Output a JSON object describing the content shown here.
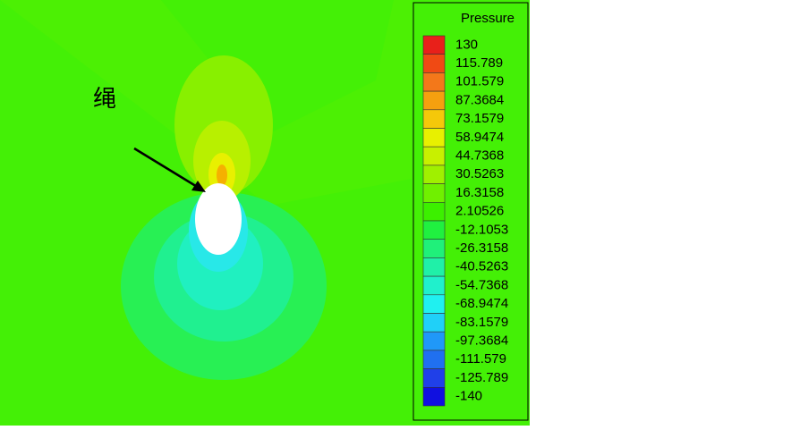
{
  "annotation": "绳",
  "legend": {
    "title": "Pressure",
    "levels": [
      {
        "label": 130,
        "color": "#e8201a"
      },
      {
        "label": 115.789,
        "color": "#f04a14"
      },
      {
        "label": 101.579,
        "color": "#f3781a"
      },
      {
        "label": 87.3684,
        "color": "#f5a00f"
      },
      {
        "label": 73.1579,
        "color": "#f5c80a"
      },
      {
        "label": 58.9474,
        "color": "#e8f000"
      },
      {
        "label": 44.7368,
        "color": "#c8f000"
      },
      {
        "label": 30.5263,
        "color": "#a0f000"
      },
      {
        "label": 16.3158,
        "color": "#70f000"
      },
      {
        "label": 2.10526,
        "color": "#3cf000"
      },
      {
        "label": -12.1053,
        "color": "#20f040"
      },
      {
        "label": -26.3158,
        "color": "#20f07a"
      },
      {
        "label": -40.5263,
        "color": "#20f0a8"
      },
      {
        "label": -54.7368,
        "color": "#20f0cc"
      },
      {
        "label": -68.9474,
        "color": "#20f0f0"
      },
      {
        "label": -83.1579,
        "color": "#20d0f8"
      },
      {
        "label": -97.3684,
        "color": "#2098f8"
      },
      {
        "label": -111.579,
        "color": "#2070f0"
      },
      {
        "label": -125.789,
        "color": "#2040e8"
      },
      {
        "label": -140,
        "color": "#1010e0"
      }
    ]
  }
}
